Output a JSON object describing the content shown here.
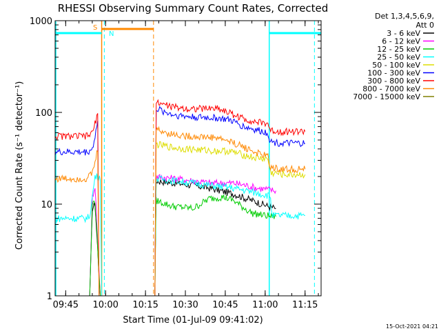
{
  "chart_data": {
    "type": "line",
    "title": "RHESSI Observing Summary Count Rates, Corrected",
    "xlabel": "Start Time (01-Jul-09 09:41:02)",
    "ylabel": "Corrected Count Rate (s⁻¹ detector⁻¹)",
    "yscale": "log",
    "ylim": [
      1,
      1000
    ],
    "xlim_minutes": [
      0,
      100
    ],
    "x_tick_labels": [
      "09:45",
      "10:00",
      "10:15",
      "10:30",
      "10:45",
      "11:00",
      "11:15"
    ],
    "x_tick_minutes": [
      3.97,
      18.97,
      33.97,
      48.97,
      63.97,
      78.97,
      93.97
    ],
    "y_tick_labels": [
      "1",
      "10",
      "100",
      "1000"
    ],
    "y_tick_values": [
      1,
      10,
      100,
      1000
    ],
    "legend_header": "Det 1,3,4,5,6,9,",
    "legend_header2": "Att 0",
    "legend_position": "right",
    "series": [
      {
        "name": "3 - 6 keV",
        "color": "#000000",
        "x": [
          0,
          13,
          14,
          15,
          17,
          18,
          37.5,
          38,
          45,
          52,
          58,
          62,
          67,
          72,
          76,
          80,
          83
        ],
        "y": [
          1,
          1,
          9,
          10,
          1,
          1,
          1,
          18,
          17,
          16,
          15,
          14,
          13,
          11.5,
          10.5,
          9.5,
          9
        ]
      },
      {
        "name": "6 - 12 keV",
        "color": "#ff00ff",
        "x": [
          0,
          13,
          14,
          15,
          17,
          18,
          37.5,
          38,
          45,
          52,
          58,
          62,
          67,
          72,
          76,
          80,
          83
        ],
        "y": [
          1,
          1,
          12,
          16,
          1,
          1,
          1,
          20,
          19,
          18,
          17,
          17,
          17,
          16,
          15,
          14.5,
          14
        ]
      },
      {
        "name": "12 - 25 keV",
        "color": "#00cc00",
        "x": [
          0,
          13,
          14,
          15,
          17,
          18,
          37.5,
          38,
          44,
          52,
          58,
          63,
          67,
          70,
          74,
          79,
          83
        ],
        "y": [
          1,
          1,
          10,
          11,
          1,
          1,
          1,
          11,
          9.5,
          9,
          11.5,
          12,
          11,
          9.5,
          8,
          7.5,
          7.3
        ]
      },
      {
        "name": "25 - 50 keV",
        "color": "#00ffff",
        "x": [
          0,
          3,
          6,
          9,
          12,
          13,
          14,
          15,
          17,
          17.5,
          37.5,
          38,
          45,
          52,
          58,
          63,
          67,
          72,
          77,
          80,
          81,
          81.5,
          86,
          92,
          94
        ],
        "y": [
          7,
          7,
          7,
          7,
          7,
          7.5,
          12,
          20,
          20,
          1,
          1,
          19,
          18,
          17,
          16,
          15.5,
          15,
          14,
          13,
          12.5,
          12,
          7.5,
          7.5,
          7.5,
          7.5
        ]
      },
      {
        "name": "50 - 100 keV",
        "color": "#dddd00",
        "x": [
          37.5,
          38,
          45,
          50,
          55,
          60,
          65,
          70,
          75,
          80,
          81,
          86,
          94
        ],
        "y": [
          1,
          45,
          41,
          40,
          39,
          38,
          38,
          35,
          32,
          31,
          22,
          21,
          21
        ]
      },
      {
        "name": "100 - 300 keV",
        "color": "#0000ff",
        "x": [
          0,
          4,
          8,
          12,
          14,
          15,
          16,
          16.5,
          37.5,
          38,
          44,
          50,
          56,
          61,
          66,
          71,
          76,
          80,
          81,
          86,
          94
        ],
        "y": [
          37,
          37,
          37,
          37,
          40,
          55,
          80,
          1,
          1,
          110,
          95,
          90,
          88,
          87,
          82,
          70,
          64,
          60,
          48,
          46,
          46
        ]
      },
      {
        "name": "300 - 800 keV",
        "color": "#ff0000",
        "x": [
          0,
          4,
          8,
          12,
          14,
          15,
          16,
          16.5,
          37.5,
          38,
          44,
          50,
          56,
          61,
          66,
          71,
          76,
          80,
          81,
          86,
          94
        ],
        "y": [
          55,
          55,
          55,
          55,
          60,
          75,
          100,
          1,
          1,
          130,
          115,
          110,
          110,
          112,
          98,
          85,
          78,
          76,
          63,
          62,
          62
        ]
      },
      {
        "name": "800 - 7000 keV",
        "color": "#ff8800",
        "x": [
          0,
          4,
          8,
          12,
          14,
          15,
          16,
          16.5,
          37.5,
          38,
          44,
          50,
          56,
          61,
          66,
          71,
          76,
          80,
          81,
          86,
          94
        ],
        "y": [
          19,
          19,
          19,
          19,
          22,
          28,
          40,
          1,
          1,
          65,
          58,
          55,
          54,
          53,
          48,
          42,
          36,
          33,
          25,
          24,
          24
        ]
      },
      {
        "name": "7000 - 15000 keV",
        "color": "#808000",
        "x": [],
        "y": []
      }
    ],
    "annotations": [
      {
        "text": "S",
        "color": "#ff8800"
      },
      {
        "text": "N",
        "color": "#00ffff"
      }
    ],
    "footer_stamp": "15-Oct-2021 04:21"
  }
}
